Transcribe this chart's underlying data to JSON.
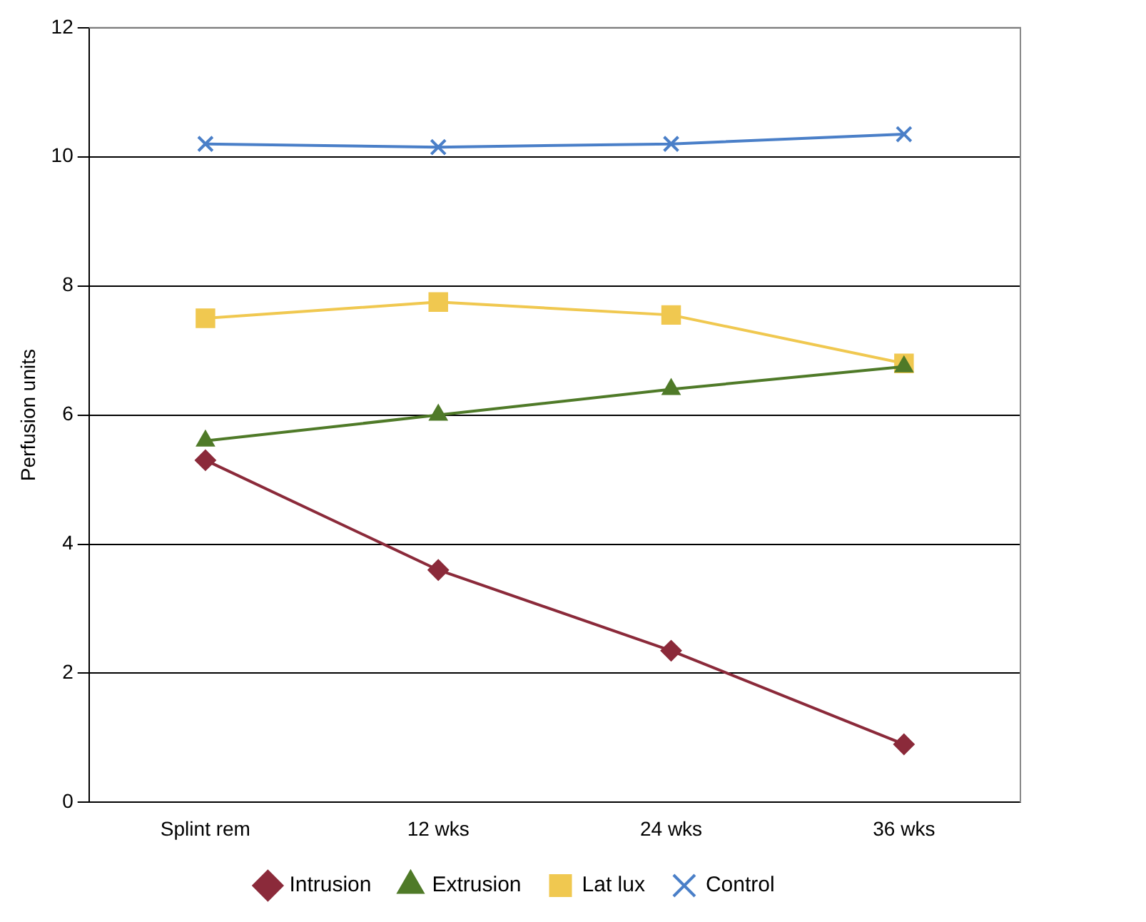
{
  "chart_data": {
    "type": "line",
    "ylabel": "Perfusion units",
    "categories": [
      "Splint rem",
      "12 wks",
      "24 wks",
      "36 wks"
    ],
    "ylim": [
      0,
      12
    ],
    "yticks": [
      0,
      2,
      4,
      6,
      8,
      10,
      12
    ],
    "grid": "y",
    "legend": "bottom",
    "series": [
      {
        "name": "Intrusion",
        "color": "#8b2a3a",
        "marker": "diamond",
        "values": [
          5.3,
          3.6,
          2.35,
          0.9
        ]
      },
      {
        "name": "Extrusion",
        "color": "#4f7a28",
        "marker": "triangle",
        "values": [
          5.6,
          6.0,
          6.4,
          6.75
        ]
      },
      {
        "name": "Lat lux",
        "color": "#f0c850",
        "marker": "square",
        "values": [
          7.5,
          7.75,
          7.55,
          6.8
        ]
      },
      {
        "name": "Control",
        "color": "#4a7fc8",
        "marker": "cross",
        "values": [
          10.2,
          10.15,
          10.2,
          10.35
        ]
      }
    ]
  }
}
